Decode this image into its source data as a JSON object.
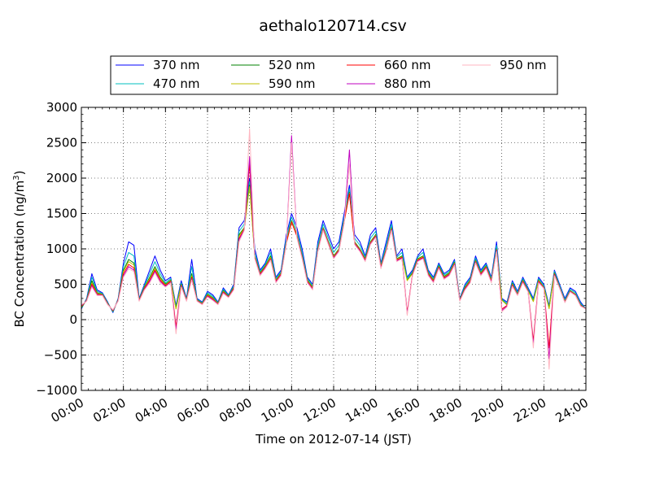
{
  "chart_data": {
    "type": "line",
    "title": "aethalo120714.csv",
    "xlabel": "Time on 2012-07-14 (JST)",
    "ylabel_main": "BC Concentration (ng/m",
    "ylabel_sup": "3",
    "ylabel_tail": ")",
    "xlim": [
      0,
      24
    ],
    "ylim": [
      -1000,
      3000
    ],
    "x_unit": "hours (JST)",
    "grid": true,
    "legend": "top-center",
    "x_ticks": [
      {
        "value": 0,
        "label": "00:00"
      },
      {
        "value": 2,
        "label": "02:00"
      },
      {
        "value": 4,
        "label": "04:00"
      },
      {
        "value": 6,
        "label": "06:00"
      },
      {
        "value": 8,
        "label": "08:00"
      },
      {
        "value": 10,
        "label": "10:00"
      },
      {
        "value": 12,
        "label": "12:00"
      },
      {
        "value": 14,
        "label": "14:00"
      },
      {
        "value": 16,
        "label": "16:00"
      },
      {
        "value": 18,
        "label": "18:00"
      },
      {
        "value": 20,
        "label": "20:00"
      },
      {
        "value": 22,
        "label": "22:00"
      },
      {
        "value": 24,
        "label": "24:00"
      }
    ],
    "y_ticks": [
      {
        "value": -1000,
        "label": "−1000"
      },
      {
        "value": -500,
        "label": "−500"
      },
      {
        "value": 0,
        "label": "0"
      },
      {
        "value": 500,
        "label": "500"
      },
      {
        "value": 1000,
        "label": "1000"
      },
      {
        "value": 1500,
        "label": "1500"
      },
      {
        "value": 2000,
        "label": "2000"
      },
      {
        "value": 2500,
        "label": "2500"
      },
      {
        "value": 3000,
        "label": "3000"
      }
    ],
    "x": [
      0.0,
      0.25,
      0.5,
      0.75,
      1.0,
      1.25,
      1.5,
      1.75,
      2.0,
      2.25,
      2.5,
      2.75,
      3.0,
      3.25,
      3.5,
      3.75,
      4.0,
      4.25,
      4.5,
      4.75,
      5.0,
      5.25,
      5.5,
      5.75,
      6.0,
      6.25,
      6.5,
      6.75,
      7.0,
      7.25,
      7.5,
      7.75,
      8.0,
      8.25,
      8.5,
      8.75,
      9.0,
      9.25,
      9.5,
      9.75,
      10.0,
      10.25,
      10.5,
      10.75,
      11.0,
      11.25,
      11.5,
      11.75,
      12.0,
      12.25,
      12.5,
      12.75,
      13.0,
      13.25,
      13.5,
      13.75,
      14.0,
      14.25,
      14.5,
      14.75,
      15.0,
      15.25,
      15.5,
      15.75,
      16.0,
      16.25,
      16.5,
      16.75,
      17.0,
      17.25,
      17.5,
      17.75,
      18.0,
      18.25,
      18.5,
      18.75,
      19.0,
      19.25,
      19.5,
      19.75,
      20.0,
      20.25,
      20.5,
      20.75,
      21.0,
      21.25,
      21.5,
      21.75,
      22.0,
      22.25,
      22.5,
      22.75,
      23.0,
      23.25,
      23.5,
      23.75,
      24.0
    ],
    "series": [
      {
        "name": "370 nm",
        "color": "#0000ff",
        "values": [
          150,
          300,
          650,
          420,
          380,
          250,
          100,
          300,
          800,
          1100,
          1050,
          300,
          500,
          700,
          900,
          700,
          550,
          600,
          200,
          550,
          300,
          850,
          300,
          250,
          400,
          350,
          250,
          450,
          350,
          500,
          1300,
          1400,
          2000,
          1000,
          700,
          800,
          1000,
          600,
          700,
          1200,
          1500,
          1300,
          1000,
          600,
          500,
          1100,
          1400,
          1200,
          1000,
          1100,
          1500,
          1900,
          1200,
          1100,
          900,
          1200,
          1300,
          800,
          1100,
          1400,
          900,
          1000,
          600,
          700,
          900,
          1000,
          700,
          600,
          800,
          650,
          700,
          850,
          300,
          500,
          600,
          900,
          700,
          800,
          600,
          1100,
          300,
          250,
          550,
          400,
          600,
          450,
          300,
          600,
          500,
          200,
          700,
          500,
          300,
          450,
          400,
          250,
          150
        ]
      },
      {
        "name": "470 nm",
        "color": "#00bfbf",
        "values": [
          160,
          290,
          600,
          400,
          370,
          240,
          110,
          290,
          750,
          950,
          900,
          290,
          480,
          650,
          820,
          650,
          520,
          580,
          180,
          520,
          290,
          750,
          290,
          240,
          380,
          330,
          240,
          430,
          340,
          480,
          1250,
          1350,
          1950,
          950,
          680,
          780,
          950,
          580,
          680,
          1150,
          1450,
          1250,
          950,
          580,
          480,
          1050,
          1350,
          1150,
          950,
          1050,
          1450,
          1850,
          1150,
          1050,
          880,
          1150,
          1250,
          780,
          1050,
          1350,
          880,
          950,
          580,
          680,
          880,
          950,
          680,
          580,
          780,
          630,
          680,
          830,
          290,
          480,
          580,
          870,
          680,
          780,
          580,
          1050,
          290,
          230,
          530,
          380,
          580,
          430,
          280,
          580,
          480,
          180,
          680,
          480,
          280,
          430,
          380,
          230,
          150
        ]
      },
      {
        "name": "520 nm",
        "color": "#008000",
        "values": [
          170,
          280,
          550,
          380,
          360,
          230,
          120,
          280,
          700,
          850,
          800,
          280,
          460,
          600,
          750,
          600,
          500,
          560,
          160,
          500,
          280,
          650,
          280,
          230,
          360,
          310,
          230,
          410,
          330,
          460,
          1200,
          1300,
          1900,
          900,
          660,
          760,
          900,
          560,
          660,
          1100,
          1400,
          1200,
          900,
          560,
          460,
          1000,
          1300,
          1100,
          900,
          1000,
          1400,
          1800,
          1100,
          1000,
          860,
          1100,
          1200,
          760,
          1000,
          1300,
          860,
          900,
          560,
          660,
          860,
          900,
          660,
          560,
          760,
          610,
          660,
          810,
          280,
          460,
          560,
          840,
          660,
          760,
          560,
          1000,
          280,
          210,
          510,
          360,
          560,
          410,
          260,
          560,
          460,
          160,
          660,
          460,
          260,
          410,
          360,
          210,
          150
        ]
      },
      {
        "name": "590 nm",
        "color": "#bfbf00",
        "values": [
          180,
          275,
          520,
          370,
          355,
          225,
          125,
          275,
          680,
          820,
          770,
          275,
          450,
          580,
          720,
          580,
          490,
          550,
          150,
          490,
          275,
          620,
          275,
          225,
          350,
          300,
          225,
          400,
          325,
          450,
          1180,
          1290,
          1880,
          890,
          650,
          750,
          880,
          550,
          650,
          1090,
          1390,
          1190,
          890,
          550,
          450,
          990,
          1290,
          1090,
          890,
          990,
          1390,
          1790,
          1090,
          990,
          850,
          1090,
          1190,
          750,
          990,
          1290,
          850,
          890,
          550,
          650,
          850,
          890,
          650,
          550,
          750,
          600,
          650,
          800,
          275,
          450,
          550,
          830,
          650,
          750,
          550,
          990,
          275,
          205,
          500,
          355,
          550,
          405,
          255,
          550,
          455,
          155,
          650,
          455,
          255,
          405,
          355,
          205,
          150
        ]
      },
      {
        "name": "660 nm",
        "color": "#ff0000",
        "values": [
          190,
          270,
          500,
          360,
          350,
          220,
          130,
          270,
          650,
          780,
          730,
          270,
          440,
          560,
          700,
          560,
          480,
          540,
          -100,
          480,
          270,
          600,
          270,
          220,
          340,
          290,
          220,
          390,
          320,
          440,
          1150,
          1280,
          2200,
          880,
          640,
          740,
          860,
          540,
          640,
          1080,
          1380,
          1180,
          880,
          540,
          440,
          980,
          1280,
          1080,
          880,
          980,
          1380,
          1780,
          1080,
          980,
          840,
          1080,
          1180,
          740,
          980,
          1280,
          840,
          880,
          100,
          640,
          840,
          880,
          640,
          540,
          740,
          590,
          640,
          790,
          270,
          440,
          540,
          820,
          640,
          740,
          540,
          980,
          150,
          200,
          490,
          350,
          540,
          400,
          -300,
          540,
          450,
          -400,
          640,
          450,
          250,
          400,
          350,
          200,
          150
        ]
      },
      {
        "name": "880 nm",
        "color": "#bf00bf",
        "values": [
          200,
          265,
          480,
          350,
          345,
          215,
          135,
          265,
          620,
          750,
          700,
          265,
          430,
          540,
          680,
          540,
          470,
          530,
          -150,
          470,
          265,
          580,
          265,
          215,
          330,
          280,
          215,
          380,
          315,
          430,
          1130,
          1270,
          2300,
          870,
          630,
          730,
          850,
          530,
          630,
          1070,
          2600,
          1170,
          870,
          530,
          430,
          970,
          1270,
          1070,
          870,
          970,
          1370,
          2400,
          1070,
          970,
          830,
          1070,
          1170,
          730,
          970,
          1270,
          830,
          870,
          80,
          630,
          830,
          870,
          630,
          530,
          730,
          580,
          630,
          780,
          265,
          430,
          530,
          810,
          630,
          730,
          530,
          970,
          130,
          190,
          480,
          345,
          530,
          395,
          -350,
          530,
          445,
          -550,
          630,
          445,
          245,
          395,
          345,
          195,
          150
        ]
      },
      {
        "name": "950 nm",
        "color": "#ffb6c1",
        "values": [
          210,
          260,
          460,
          340,
          340,
          210,
          140,
          260,
          600,
          720,
          680,
          260,
          420,
          520,
          660,
          520,
          460,
          520,
          -200,
          460,
          260,
          560,
          260,
          210,
          320,
          270,
          210,
          370,
          310,
          420,
          1100,
          1260,
          2700,
          860,
          620,
          720,
          840,
          520,
          620,
          1060,
          2500,
          1160,
          860,
          520,
          420,
          960,
          1260,
          1060,
          860,
          960,
          1360,
          2200,
          1060,
          960,
          820,
          1060,
          1160,
          720,
          960,
          1260,
          820,
          860,
          60,
          620,
          820,
          860,
          620,
          520,
          720,
          570,
          620,
          770,
          260,
          420,
          520,
          800,
          620,
          720,
          520,
          960,
          110,
          180,
          470,
          340,
          520,
          390,
          -400,
          520,
          440,
          -700,
          620,
          440,
          240,
          390,
          340,
          190,
          150
        ]
      }
    ]
  }
}
